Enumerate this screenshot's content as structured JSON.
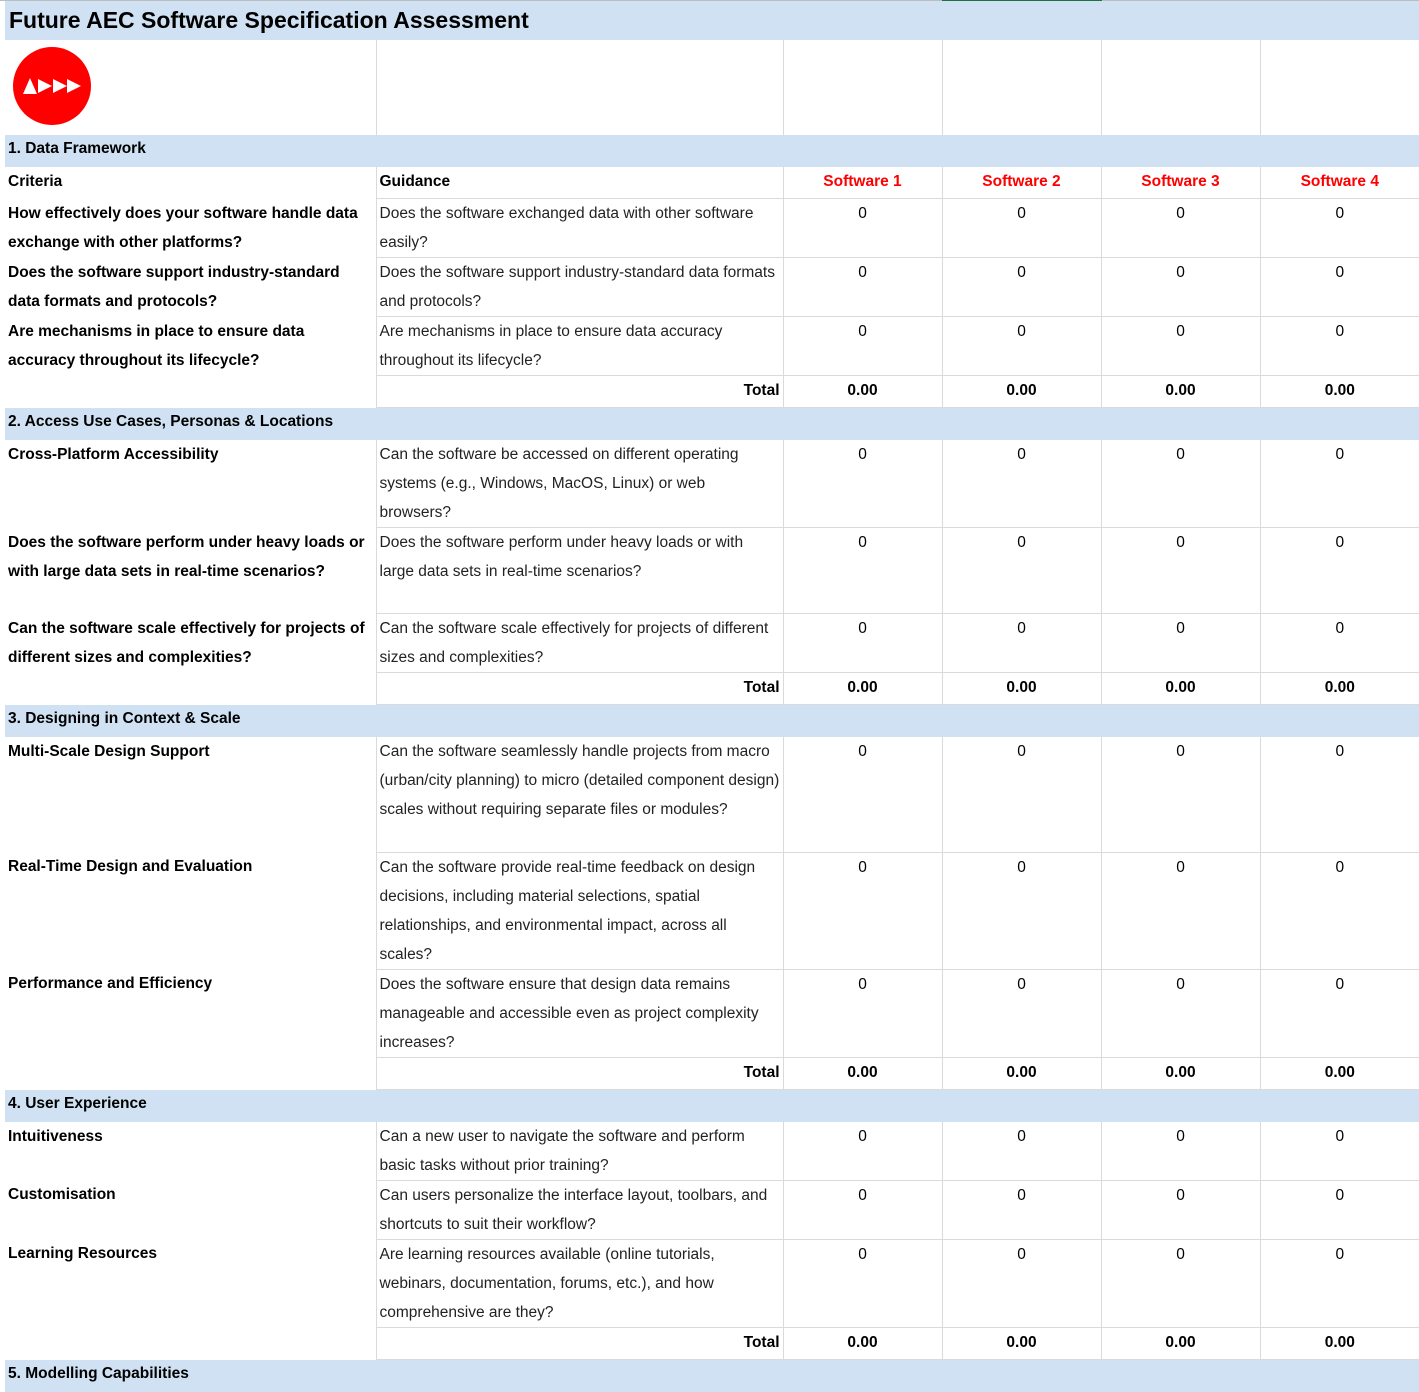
{
  "title": "Future AEC Software Specification Assessment",
  "logo": {
    "icon": "play-arrows-logo",
    "color": "#ff0000"
  },
  "header": {
    "criteria": "Criteria",
    "guidance": "Guidance",
    "software": [
      "Software 1",
      "Software 2",
      "Software 3",
      "Software 4"
    ]
  },
  "total_label": "Total",
  "sections": [
    {
      "title": "1. Data Framework",
      "show_header": true,
      "rows": [
        {
          "criteria": "How effectively does your software handle data exchange with other platforms?",
          "guidance": "Does the software exchanged data with other software easily?",
          "scores": [
            "0",
            "0",
            "0",
            "0"
          ],
          "lines": 2
        },
        {
          "criteria": "Does the software support industry-standard data formats and protocols?",
          "guidance": "Does the software support industry-standard data formats and protocols?",
          "scores": [
            "0",
            "0",
            "0",
            "0"
          ],
          "lines": 2
        },
        {
          "criteria": "Are mechanisms in place to ensure data accuracy throughout its lifecycle?",
          "guidance": "Are mechanisms in place to ensure data accuracy throughout its lifecycle?",
          "scores": [
            "0",
            "0",
            "0",
            "0"
          ],
          "lines": 2
        }
      ],
      "totals": [
        "0.00",
        "0.00",
        "0.00",
        "0.00"
      ]
    },
    {
      "title": "2. Access Use Cases, Personas & Locations",
      "rows": [
        {
          "criteria": "Cross-Platform Accessibility",
          "guidance": "Can the software be accessed on different operating systems (e.g., Windows, MacOS, Linux) or web browsers?",
          "scores": [
            "0",
            "0",
            "0",
            "0"
          ],
          "lines": 3
        },
        {
          "criteria": "Does the software perform under heavy loads or with large data sets in real-time scenarios?",
          "guidance": "Does the software perform under heavy loads or with large data sets in real-time scenarios?",
          "scores": [
            "0",
            "0",
            "0",
            "0"
          ],
          "lines": 3
        },
        {
          "criteria": "Can the software scale effectively for projects of different sizes and complexities?",
          "guidance": "Can the software scale effectively for projects of different sizes and complexities?",
          "scores": [
            "0",
            "0",
            "0",
            "0"
          ],
          "lines": 2
        }
      ],
      "totals": [
        "0.00",
        "0.00",
        "0.00",
        "0.00"
      ]
    },
    {
      "title": "3. Designing in Context & Scale",
      "rows": [
        {
          "criteria": "Multi-Scale Design Support",
          "guidance": "Can the software seamlessly handle projects from macro (urban/city planning) to micro (detailed component design) scales without requiring separate files or modules?",
          "scores": [
            "0",
            "0",
            "0",
            "0"
          ],
          "lines": 4
        },
        {
          "criteria": "Real-Time Design and Evaluation",
          "guidance": "Can the software provide real-time feedback on design decisions, including material selections, spatial relationships, and environmental impact, across all scales?",
          "scores": [
            "0",
            "0",
            "0",
            "0"
          ],
          "lines": 4
        },
        {
          "criteria": "Performance and Efficiency",
          "guidance": "Does the software ensure that design data remains manageable and accessible even as project complexity increases?",
          "scores": [
            "0",
            "0",
            "0",
            "0"
          ],
          "lines": 3
        }
      ],
      "totals": [
        "0.00",
        "0.00",
        "0.00",
        "0.00"
      ]
    },
    {
      "title": "4. User Experience",
      "rows": [
        {
          "criteria": "Intuitiveness",
          "guidance": "Can a new user to navigate the software and perform basic tasks without prior training?",
          "scores": [
            "0",
            "0",
            "0",
            "0"
          ],
          "lines": 2
        },
        {
          "criteria": "Customisation",
          "guidance": "Can users personalize the interface layout, toolbars, and shortcuts to suit their workflow?",
          "scores": [
            "0",
            "0",
            "0",
            "0"
          ],
          "lines": 2
        },
        {
          "criteria": "Learning Resources",
          "guidance": "Are learning resources available (online tutorials, webinars, documentation, forums, etc.), and how comprehensive are they?",
          "scores": [
            "0",
            "0",
            "0",
            "0"
          ],
          "lines": 3
        }
      ],
      "totals": [
        "0.00",
        "0.00",
        "0.00",
        "0.00"
      ]
    },
    {
      "title": "5. Modelling Capabilities",
      "rows": []
    }
  ]
}
